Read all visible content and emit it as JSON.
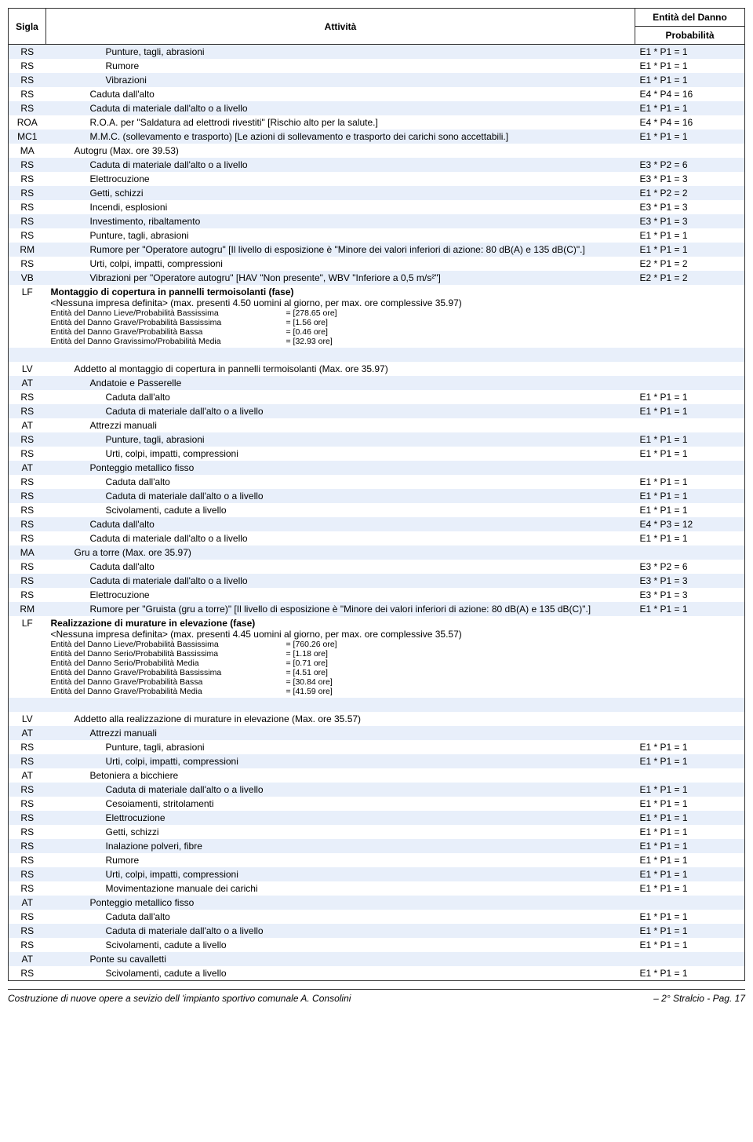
{
  "header": {
    "sigla": "Sigla",
    "attivita": "Attività",
    "entita1": "Entità del Danno",
    "entita2": "Probabilità"
  },
  "rows": [
    {
      "s": "RS",
      "stripe": true,
      "ind": 2,
      "t": "Punture, tagli, abrasioni",
      "e": "E1 * P1 = 1"
    },
    {
      "s": "RS",
      "stripe": false,
      "ind": 2,
      "t": "Rumore",
      "e": "E1 * P1 = 1"
    },
    {
      "s": "RS",
      "stripe": true,
      "ind": 2,
      "t": "Vibrazioni",
      "e": "E1 * P1 = 1"
    },
    {
      "s": "RS",
      "stripe": false,
      "ind": 1,
      "t": "Caduta dall'alto",
      "e": "E4 * P4 = 16"
    },
    {
      "s": "RS",
      "stripe": true,
      "ind": 1,
      "t": "Caduta di materiale dall'alto o a livello",
      "e": "E1 * P1 = 1"
    },
    {
      "s": "ROA",
      "stripe": false,
      "ind": 1,
      "t": "R.O.A. per \"Saldatura ad elettrodi rivestiti\" [Rischio alto per la salute.]",
      "e": "E4 * P4 = 16"
    },
    {
      "s": "MC1",
      "stripe": true,
      "ind": 1,
      "t": "M.M.C. (sollevamento e trasporto) [Le azioni di sollevamento e trasporto dei carichi sono accettabili.]",
      "e": "E1 * P1 = 1"
    },
    {
      "s": "MA",
      "stripe": false,
      "ind": 0,
      "t": "Autogru  (Max. ore 39.53)",
      "e": ""
    },
    {
      "s": "RS",
      "stripe": true,
      "ind": 1,
      "t": "Caduta di materiale dall'alto o a livello",
      "e": "E3 * P2 = 6"
    },
    {
      "s": "RS",
      "stripe": false,
      "ind": 1,
      "t": "Elettrocuzione",
      "e": "E3 * P1 = 3"
    },
    {
      "s": "RS",
      "stripe": true,
      "ind": 1,
      "t": "Getti, schizzi",
      "e": "E1 * P2 = 2"
    },
    {
      "s": "RS",
      "stripe": false,
      "ind": 1,
      "t": "Incendi, esplosioni",
      "e": "E3 * P1 = 3"
    },
    {
      "s": "RS",
      "stripe": true,
      "ind": 1,
      "t": "Investimento, ribaltamento",
      "e": "E3 * P1 = 3"
    },
    {
      "s": "RS",
      "stripe": false,
      "ind": 1,
      "t": "Punture, tagli, abrasioni",
      "e": "E1 * P1 = 1"
    },
    {
      "s": "RM",
      "stripe": true,
      "ind": 1,
      "t": "Rumore per \"Operatore autogru\" [Il livello di esposizione è \"Minore dei valori inferiori di azione: 80 dB(A) e 135 dB(C)\".]",
      "e": "E1 * P1 = 1"
    },
    {
      "s": "RS",
      "stripe": false,
      "ind": 1,
      "t": "Urti, colpi, impatti, compressioni",
      "e": "E2 * P1 = 2"
    },
    {
      "s": "VB",
      "stripe": true,
      "ind": 1,
      "t": "Vibrazioni per \"Operatore autogru\" [HAV \"Non presente\", WBV \"Inferiore a 0,5 m/s²\"]",
      "e": "E2 * P1 = 2"
    },
    {
      "s": "LF",
      "stripe": false,
      "lf": true,
      "title": "Montaggio di copertura in pannelli termoisolanti (fase)",
      "sub": "<Nessuna impresa definita>  (max. presenti 4.50 uomini al giorno, per max. ore complessive 35.97)",
      "details": [
        {
          "l": "Entità del Danno Lieve/Probabilità Bassissima",
          "v": "= [278.65 ore]"
        },
        {
          "l": "Entità del Danno Grave/Probabilità Bassissima",
          "v": "= [1.56 ore]"
        },
        {
          "l": "Entità del Danno Grave/Probabilità Bassa",
          "v": "= [0.46 ore]"
        },
        {
          "l": "Entità del Danno Gravissimo/Probabilità Media",
          "v": "= [32.93 ore]"
        }
      ]
    },
    {
      "spacer": true,
      "stripe": true
    },
    {
      "s": "LV",
      "stripe": false,
      "ind": 0,
      "t": "Addetto al montaggio di copertura in pannelli termoisolanti  (Max. ore 35.97)",
      "e": ""
    },
    {
      "s": "AT",
      "stripe": true,
      "ind": 1,
      "t": "Andatoie e Passerelle",
      "e": ""
    },
    {
      "s": "RS",
      "stripe": false,
      "ind": 2,
      "t": "Caduta dall'alto",
      "e": "E1 * P1 = 1"
    },
    {
      "s": "RS",
      "stripe": true,
      "ind": 2,
      "t": "Caduta di materiale dall'alto o a livello",
      "e": "E1 * P1 = 1"
    },
    {
      "s": "AT",
      "stripe": false,
      "ind": 1,
      "t": "Attrezzi manuali",
      "e": ""
    },
    {
      "s": "RS",
      "stripe": true,
      "ind": 2,
      "t": "Punture, tagli, abrasioni",
      "e": "E1 * P1 = 1"
    },
    {
      "s": "RS",
      "stripe": false,
      "ind": 2,
      "t": "Urti, colpi, impatti, compressioni",
      "e": "E1 * P1 = 1"
    },
    {
      "s": "AT",
      "stripe": true,
      "ind": 1,
      "t": "Ponteggio metallico fisso",
      "e": ""
    },
    {
      "s": "RS",
      "stripe": false,
      "ind": 2,
      "t": "Caduta dall'alto",
      "e": "E1 * P1 = 1"
    },
    {
      "s": "RS",
      "stripe": true,
      "ind": 2,
      "t": "Caduta di materiale dall'alto o a livello",
      "e": "E1 * P1 = 1"
    },
    {
      "s": "RS",
      "stripe": false,
      "ind": 2,
      "t": "Scivolamenti, cadute a livello",
      "e": "E1 * P1 = 1"
    },
    {
      "s": "RS",
      "stripe": true,
      "ind": 1,
      "t": "Caduta dall'alto",
      "e": "E4 * P3 = 12"
    },
    {
      "s": "RS",
      "stripe": false,
      "ind": 1,
      "t": "Caduta di materiale dall'alto o a livello",
      "e": "E1 * P1 = 1"
    },
    {
      "s": "MA",
      "stripe": true,
      "ind": 0,
      "t": "Gru a torre  (Max. ore 35.97)",
      "e": ""
    },
    {
      "s": "RS",
      "stripe": false,
      "ind": 1,
      "t": "Caduta dall'alto",
      "e": "E3 * P2 = 6"
    },
    {
      "s": "RS",
      "stripe": true,
      "ind": 1,
      "t": "Caduta di materiale dall'alto o a livello",
      "e": "E3 * P1 = 3"
    },
    {
      "s": "RS",
      "stripe": false,
      "ind": 1,
      "t": "Elettrocuzione",
      "e": "E3 * P1 = 3"
    },
    {
      "s": "RM",
      "stripe": true,
      "ind": 1,
      "t": "Rumore per \"Gruista (gru a torre)\" [Il livello di esposizione è \"Minore dei valori inferiori di azione: 80 dB(A) e 135 dB(C)\".]",
      "e": "E1 * P1 = 1"
    },
    {
      "s": "LF",
      "stripe": false,
      "lf": true,
      "title": "Realizzazione di murature in elevazione (fase)",
      "sub": "<Nessuna impresa definita>  (max. presenti 4.45 uomini al giorno, per max. ore complessive 35.57)",
      "details": [
        {
          "l": "Entità del Danno Lieve/Probabilità Bassissima",
          "v": "= [760.26 ore]"
        },
        {
          "l": "Entità del Danno Serio/Probabilità Bassissima",
          "v": "= [1.18 ore]"
        },
        {
          "l": "Entità del Danno Serio/Probabilità Media",
          "v": "= [0.71 ore]"
        },
        {
          "l": "Entità del Danno Grave/Probabilità Bassissima",
          "v": "= [4.51 ore]"
        },
        {
          "l": "Entità del Danno Grave/Probabilità Bassa",
          "v": "= [30.84 ore]"
        },
        {
          "l": "Entità del Danno Grave/Probabilità Media",
          "v": "= [41.59 ore]"
        }
      ]
    },
    {
      "spacer": true,
      "stripe": true
    },
    {
      "s": "LV",
      "stripe": false,
      "ind": 0,
      "t": "Addetto alla realizzazione di murature in elevazione  (Max. ore 35.57)",
      "e": ""
    },
    {
      "s": "AT",
      "stripe": true,
      "ind": 1,
      "t": "Attrezzi manuali",
      "e": ""
    },
    {
      "s": "RS",
      "stripe": false,
      "ind": 2,
      "t": "Punture, tagli, abrasioni",
      "e": "E1 * P1 = 1"
    },
    {
      "s": "RS",
      "stripe": true,
      "ind": 2,
      "t": "Urti, colpi, impatti, compressioni",
      "e": "E1 * P1 = 1"
    },
    {
      "s": "AT",
      "stripe": false,
      "ind": 1,
      "t": "Betoniera a bicchiere",
      "e": ""
    },
    {
      "s": "RS",
      "stripe": true,
      "ind": 2,
      "t": "Caduta di materiale dall'alto o a livello",
      "e": "E1 * P1 = 1"
    },
    {
      "s": "RS",
      "stripe": false,
      "ind": 2,
      "t": "Cesoiamenti, stritolamenti",
      "e": "E1 * P1 = 1"
    },
    {
      "s": "RS",
      "stripe": true,
      "ind": 2,
      "t": "Elettrocuzione",
      "e": "E1 * P1 = 1"
    },
    {
      "s": "RS",
      "stripe": false,
      "ind": 2,
      "t": "Getti, schizzi",
      "e": "E1 * P1 = 1"
    },
    {
      "s": "RS",
      "stripe": true,
      "ind": 2,
      "t": "Inalazione polveri, fibre",
      "e": "E1 * P1 = 1"
    },
    {
      "s": "RS",
      "stripe": false,
      "ind": 2,
      "t": "Rumore",
      "e": "E1 * P1 = 1"
    },
    {
      "s": "RS",
      "stripe": true,
      "ind": 2,
      "t": "Urti, colpi, impatti, compressioni",
      "e": "E1 * P1 = 1"
    },
    {
      "s": "RS",
      "stripe": false,
      "ind": 2,
      "t": "Movimentazione manuale dei carichi",
      "e": "E1 * P1 = 1"
    },
    {
      "s": "AT",
      "stripe": true,
      "ind": 1,
      "t": "Ponteggio metallico fisso",
      "e": ""
    },
    {
      "s": "RS",
      "stripe": false,
      "ind": 2,
      "t": "Caduta dall'alto",
      "e": "E1 * P1 = 1"
    },
    {
      "s": "RS",
      "stripe": true,
      "ind": 2,
      "t": "Caduta di materiale dall'alto o a livello",
      "e": "E1 * P1 = 1"
    },
    {
      "s": "RS",
      "stripe": false,
      "ind": 2,
      "t": "Scivolamenti, cadute a livello",
      "e": "E1 * P1 = 1"
    },
    {
      "s": "AT",
      "stripe": true,
      "ind": 1,
      "t": "Ponte su cavalletti",
      "e": ""
    },
    {
      "s": "RS",
      "stripe": false,
      "ind": 2,
      "t": "Scivolamenti, cadute a livello",
      "e": "E1 * P1 = 1"
    }
  ],
  "footer": {
    "left": "Costruzione di nuove opere a sevizio dell        'impianto sportivo comunale A. Consolini",
    "right": "– 2° Stralcio - Pag.    17"
  }
}
